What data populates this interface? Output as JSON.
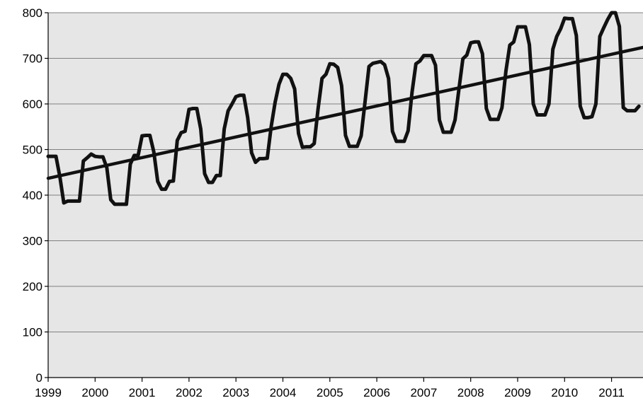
{
  "chart_data": {
    "type": "line",
    "title": "",
    "xlabel": "",
    "ylabel": "",
    "xlim": [
      1999,
      2011.67
    ],
    "ylim": [
      0,
      800
    ],
    "x_ticks": [
      1999,
      2000,
      2001,
      2002,
      2003,
      2004,
      2005,
      2006,
      2007,
      2008,
      2009,
      2010,
      2011
    ],
    "x_tick_labels": [
      "1999",
      "2000",
      "2001",
      "2002",
      "2003",
      "2004",
      "2005",
      "2006",
      "2007",
      "2008",
      "2009",
      "2010",
      "2011"
    ],
    "y_ticks": [
      0,
      100,
      200,
      300,
      400,
      500,
      600,
      700,
      800
    ],
    "y_tick_labels": [
      "0",
      "100",
      "200",
      "300",
      "400",
      "500",
      "600",
      "700",
      "800"
    ],
    "grid": "horizontal",
    "legend": "none",
    "colors": {
      "plot_background": "#e6e6e6",
      "line": "#111111",
      "grid": "#808080"
    },
    "series": [
      {
        "values_by_year": [
          {
            "year": 1999,
            "months": [
              485,
              485,
              485,
              440,
              383,
              387,
              387,
              387,
              387,
              475,
              482,
              490
            ]
          },
          {
            "year": 2000,
            "months": [
              485,
              484,
              484,
              460,
              390,
              380,
              380,
              380,
              380,
              468,
              487,
              487
            ]
          },
          {
            "year": 2001,
            "months": [
              530,
              531,
              531,
              495,
              430,
              413,
              413,
              430,
              431,
              520,
              537,
              540
            ]
          },
          {
            "year": 2002,
            "months": [
              588,
              590,
              590,
              545,
              447,
              428,
              428,
              443,
              443,
              545,
              585,
              600
            ]
          },
          {
            "year": 2003,
            "months": [
              616,
              619,
              619,
              570,
              493,
              472,
              480,
              480,
              481,
              550,
              603,
              643
            ]
          },
          {
            "year": 2004,
            "months": [
              665,
              665,
              656,
              633,
              535,
              505,
              506,
              506,
              513,
              590,
              656,
              665
            ]
          },
          {
            "year": 2005,
            "months": [
              688,
              687,
              680,
              640,
              531,
              507,
              507,
              507,
              530,
              605,
              682,
              689
            ]
          },
          {
            "year": 2006,
            "months": [
              691,
              693,
              686,
              656,
              540,
              518,
              518,
              518,
              541,
              625,
              688,
              694
            ]
          },
          {
            "year": 2007,
            "months": [
              706,
              706,
              706,
              685,
              565,
              538,
              538,
              538,
              565,
              633,
              699,
              707
            ]
          },
          {
            "year": 2008,
            "months": [
              734,
              736,
              736,
              710,
              590,
              566,
              566,
              566,
              592,
              672,
              729,
              736
            ]
          },
          {
            "year": 2009,
            "months": [
              769,
              769,
              769,
              730,
              600,
              576,
              576,
              576,
              600,
              720,
              748,
              765
            ]
          },
          {
            "year": 2010,
            "months": [
              788,
              787,
              787,
              750,
              595,
              570,
              570,
              572,
              600,
              748,
              767,
              785
            ]
          },
          {
            "year": 2011,
            "months": [
              800,
              800,
              770,
              592,
              585,
              585,
              585,
              595
            ]
          }
        ]
      }
    ],
    "trendline": {
      "x": [
        1999,
        2011.67
      ],
      "y": [
        437,
        724
      ]
    }
  }
}
